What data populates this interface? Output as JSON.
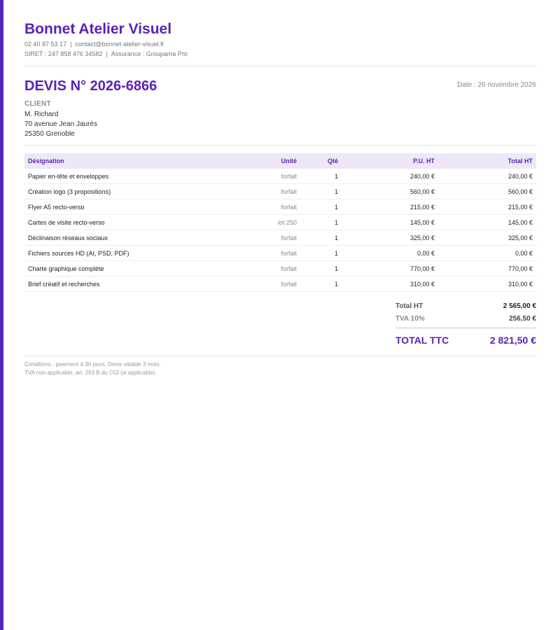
{
  "accent_color": "#5b21b6",
  "header_band_color": "#ede7f6",
  "company": {
    "name": "Bonnet Atelier Visuel",
    "phone": "02 40 87 53 17",
    "email": "contact@bonnet-atelier-visuel.fr",
    "siret": "SIRET : 247 858 476 34582",
    "insurance": "Assurance : Groupama Pro",
    "separator": "|"
  },
  "quote": {
    "title": "DEVIS N° 2026-6866",
    "date": "Date : 26 novembre 2026"
  },
  "client": {
    "label": "CLIENT",
    "name": "M. Richard",
    "address1": "70 avenue Jean Jaurès",
    "address2": "25350 Grenoble"
  },
  "table": {
    "headers": {
      "designation": "Désignation",
      "unit": "Unité",
      "qty": "Qté",
      "unit_price": "P.U. HT",
      "total": "Total HT"
    },
    "rows": [
      {
        "designation": "Papier en-tête et enveloppes",
        "unit": "forfait",
        "qty": "1",
        "unit_price": "240,00 €",
        "total": "240,00 €"
      },
      {
        "designation": "Création logo (3 propositions)",
        "unit": "forfait",
        "qty": "1",
        "unit_price": "560,00 €",
        "total": "560,00 €"
      },
      {
        "designation": "Flyer A5 recto-verso",
        "unit": "forfait",
        "qty": "1",
        "unit_price": "215,00 €",
        "total": "215,00 €"
      },
      {
        "designation": "Cartes de visite recto-verso",
        "unit": "lot 250",
        "qty": "1",
        "unit_price": "145,00 €",
        "total": "145,00 €"
      },
      {
        "designation": "Déclinaison réseaux sociaux",
        "unit": "forfait",
        "qty": "1",
        "unit_price": "325,00 €",
        "total": "325,00 €"
      },
      {
        "designation": "Fichiers sources HD (AI, PSD, PDF)",
        "unit": "forfait",
        "qty": "1",
        "unit_price": "0,00 €",
        "total": "0,00 €"
      },
      {
        "designation": "Charte graphique complète",
        "unit": "forfait",
        "qty": "1",
        "unit_price": "770,00 €",
        "total": "770,00 €"
      },
      {
        "designation": "Brief créatif et recherches",
        "unit": "forfait",
        "qty": "1",
        "unit_price": "310,00 €",
        "total": "310,00 €"
      }
    ]
  },
  "totals": {
    "ht_label": "Total HT",
    "ht_value": "2 565,00 €",
    "tva_label": "TVA 10%",
    "tva_value": "256,50 €",
    "ttc_label": "TOTAL TTC",
    "ttc_value": "2 821,50 €"
  },
  "conditions": {
    "line1": "Conditions : paiement à 30 jours. Devis valable 3 mois.",
    "line2": "TVA non applicable, art. 293 B du CGI (si applicable)."
  }
}
